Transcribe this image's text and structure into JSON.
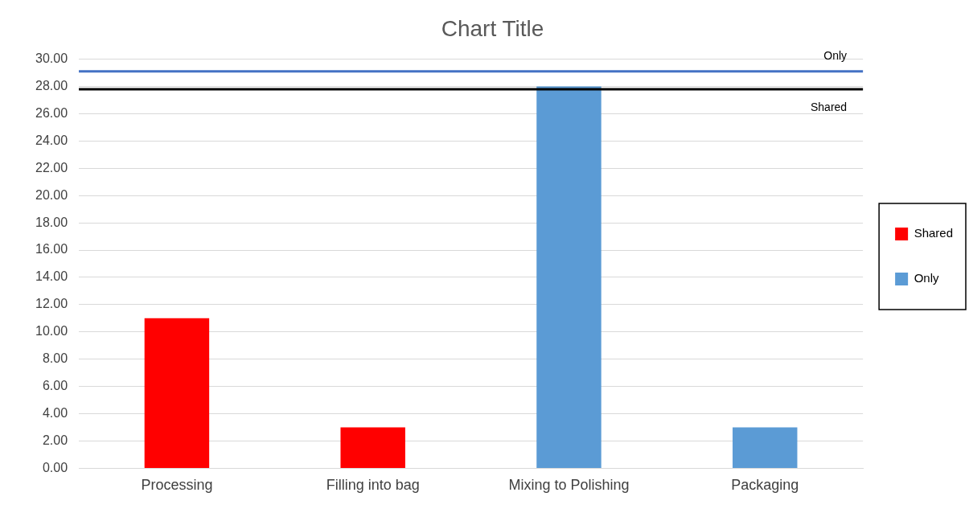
{
  "chart_data": {
    "type": "bar",
    "title": "Chart Title",
    "categories": [
      "Processing",
      "Filling into bag",
      "Mixing to Polishing",
      "Packaging"
    ],
    "series": [
      {
        "name": "Shared",
        "color": "#ff0000",
        "values": [
          11,
          3,
          null,
          null
        ]
      },
      {
        "name": "Only",
        "color": "#5b9bd5",
        "values": [
          null,
          null,
          28,
          3
        ]
      }
    ],
    "ylim": [
      0,
      30
    ],
    "yticks": [
      {
        "value": 0,
        "label": "0.00"
      },
      {
        "value": 2,
        "label": "2.00"
      },
      {
        "value": 4,
        "label": "4.00"
      },
      {
        "value": 6,
        "label": "6.00"
      },
      {
        "value": 8,
        "label": "8.00"
      },
      {
        "value": 10,
        "label": "10.00"
      },
      {
        "value": 12,
        "label": "12.00"
      },
      {
        "value": 14,
        "label": "14.00"
      },
      {
        "value": 16,
        "label": "16.00"
      },
      {
        "value": 18,
        "label": "18.00"
      },
      {
        "value": 20,
        "label": "20.00"
      },
      {
        "value": 22,
        "label": "22.00"
      },
      {
        "value": 24,
        "label": "24.00"
      },
      {
        "value": 26,
        "label": "26.00"
      },
      {
        "value": 28,
        "label": "28.00"
      },
      {
        "value": 30,
        "label": "30.00"
      }
    ],
    "ref_lines": [
      {
        "axis": "y",
        "value": 29.1,
        "label": "Only",
        "color": "#4472c4"
      },
      {
        "axis": "y",
        "value": 27.8,
        "label": "Shared",
        "color": "#000000"
      }
    ],
    "grid": "y",
    "legend": "right"
  }
}
